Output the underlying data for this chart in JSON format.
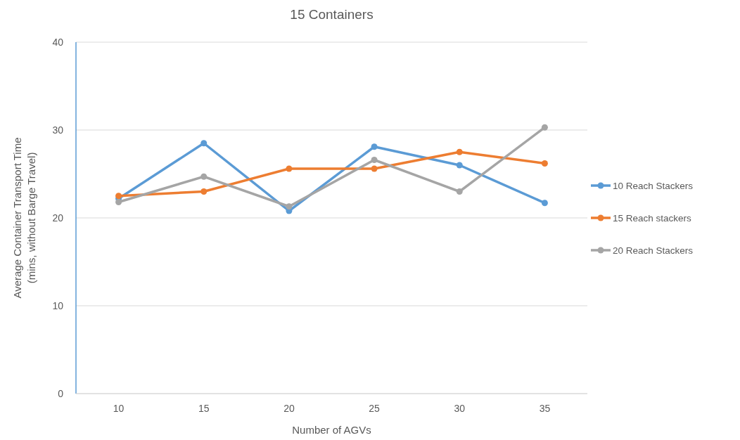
{
  "chart_data": {
    "type": "line",
    "title": "15 Containers",
    "xlabel": "Number of AGVs",
    "ylabel": "Average Container Transport Time (mins, without Barge Travel)",
    "categories": [
      "10",
      "15",
      "20",
      "25",
      "30",
      "35"
    ],
    "series": [
      {
        "name": "10 Reach Stackers",
        "color": "#5b9bd5",
        "values": [
          22.2,
          28.5,
          20.8,
          28.1,
          26.0,
          21.7
        ]
      },
      {
        "name": "15 Reach stackers",
        "color": "#ed7d31",
        "values": [
          22.5,
          23.0,
          25.6,
          25.6,
          27.5,
          26.2
        ]
      },
      {
        "name": "20 Reach Stackers",
        "color": "#a5a5a5",
        "values": [
          21.8,
          24.7,
          21.3,
          26.6,
          23.0,
          30.3
        ]
      }
    ],
    "ylim": [
      0,
      40
    ],
    "yticks": [
      0,
      10,
      20,
      30,
      40
    ],
    "grid": "y",
    "legend": "right",
    "marker": "circle",
    "line_style": "solid"
  }
}
